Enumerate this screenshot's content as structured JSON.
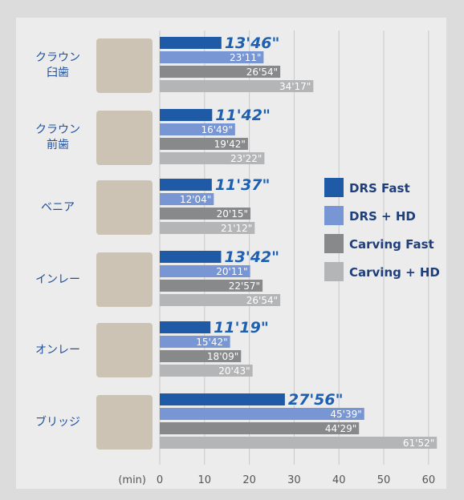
{
  "chart_data": {
    "type": "bar",
    "orientation": "horizontal",
    "categories": [
      "クラウン\n臼歯",
      "クラウン\n前歯",
      "ベニア",
      "インレー",
      "オンレー",
      "ブリッジ"
    ],
    "series": [
      {
        "name": "DRS Fast",
        "color": "#1f5aa6",
        "values": [
          13.767,
          11.7,
          11.617,
          13.7,
          11.317,
          27.933
        ],
        "value_labels": [
          "13'46\"",
          "11'42\"",
          "11'37\"",
          "13'42\"",
          "11'19\"",
          "27'56\""
        ]
      },
      {
        "name": "DRS + HD",
        "color": "#7896d4",
        "values": [
          23.183,
          16.817,
          12.067,
          20.183,
          15.7,
          45.65
        ],
        "value_labels": [
          "23'11\"",
          "16'49\"",
          "12'04\"",
          "20'11\"",
          "15'42\"",
          "45'39\""
        ]
      },
      {
        "name": "Carving Fast",
        "color": "#88898b",
        "values": [
          26.9,
          19.7,
          20.25,
          22.95,
          18.15,
          44.483
        ],
        "value_labels": [
          "26'54\"",
          "19'42\"",
          "20'15\"",
          "22'57\"",
          "18'09\"",
          "44'29\""
        ]
      },
      {
        "name": "Carving + HD",
        "color": "#b4b5b7",
        "values": [
          34.283,
          23.367,
          21.2,
          26.9,
          20.717,
          61.867
        ],
        "value_labels": [
          "34'17\"",
          "23'22\"",
          "21'12\"",
          "26'54\"",
          "20'43\"",
          "61'52\""
        ]
      }
    ],
    "xlabel": "(min)",
    "xlim": [
      0,
      62
    ],
    "xticks": [
      0,
      10,
      20,
      30,
      40,
      50,
      60
    ],
    "grid": true
  }
}
